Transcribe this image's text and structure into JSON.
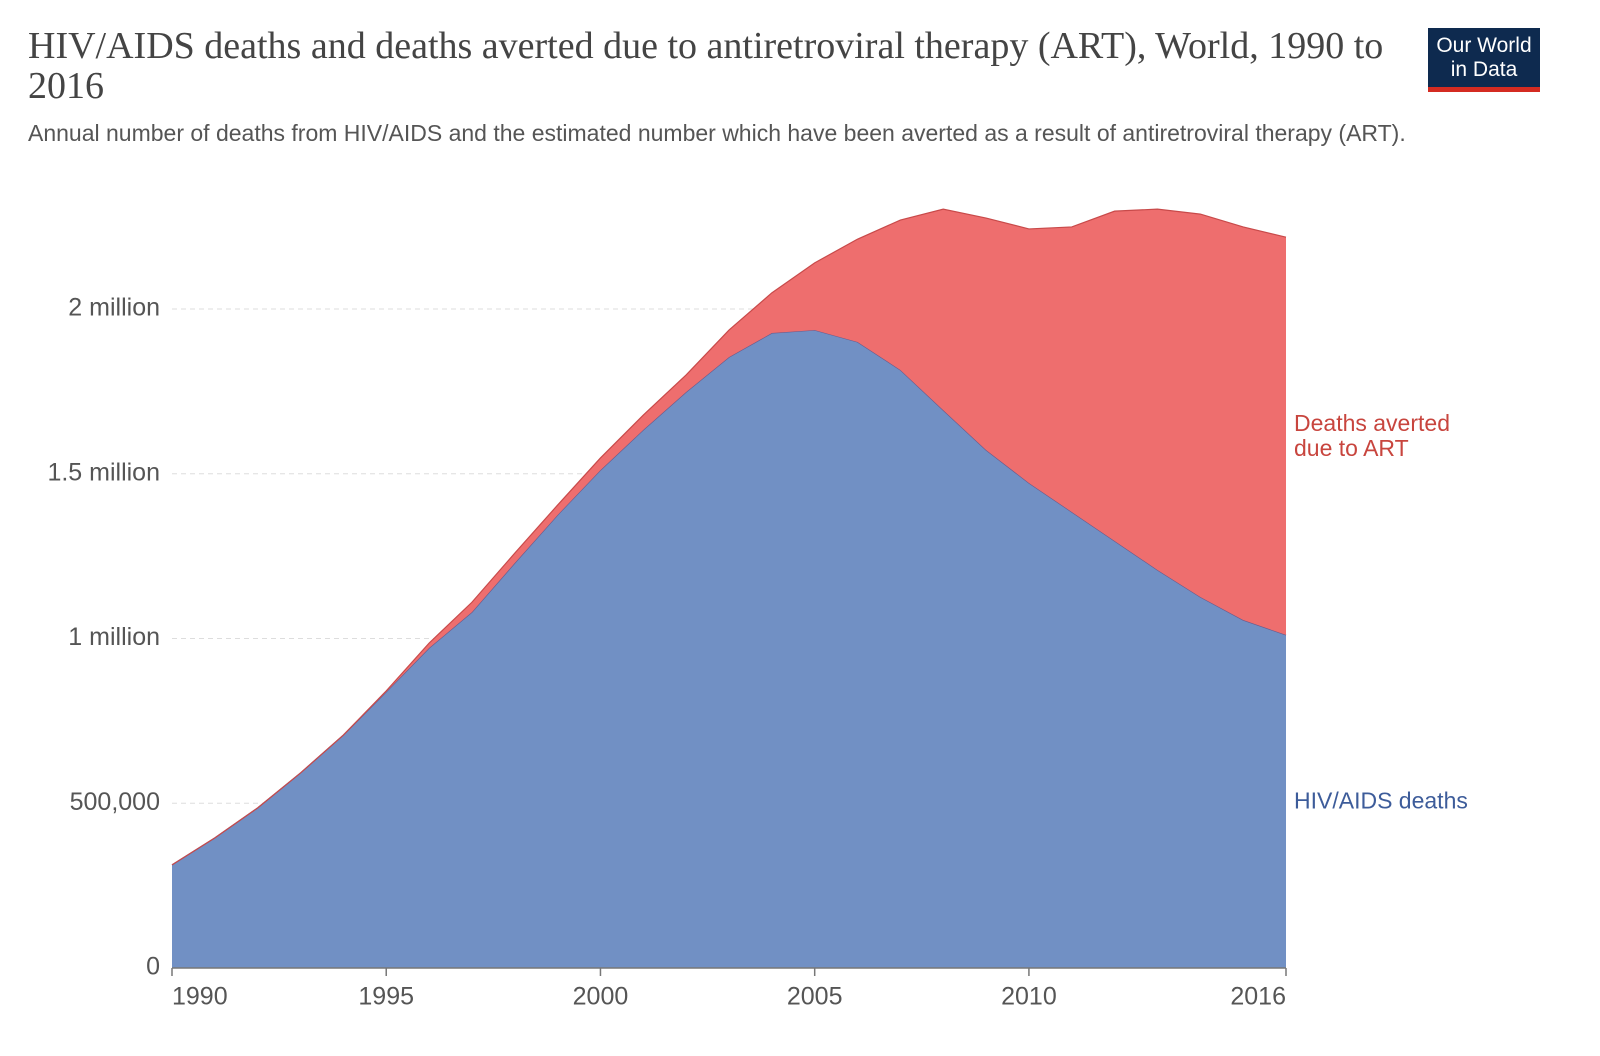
{
  "chart_data": {
    "type": "stacked_area",
    "title": "HIV/AIDS deaths and deaths averted due to antiretroviral therapy (ART), World, 1990 to 2016",
    "subtitle": "Annual number of deaths from HIV/AIDS and the estimated number which have been averted as a result of antiretroviral therapy (ART).",
    "logo": [
      "Our World",
      "in Data"
    ],
    "x": [
      1990,
      1991,
      1992,
      1993,
      1994,
      1995,
      1996,
      1997,
      1998,
      1999,
      2000,
      2001,
      2002,
      2003,
      2004,
      2005,
      2006,
      2007,
      2008,
      2009,
      2010,
      2011,
      2012,
      2013,
      2014,
      2015,
      2016
    ],
    "series": [
      {
        "name": "HIV/AIDS deaths",
        "color": "#7190c4",
        "label_color": "#3d5c9a",
        "values": [
          313000,
          395000,
          486000,
          592000,
          707000,
          838000,
          971000,
          1080000,
          1229000,
          1375000,
          1511000,
          1633000,
          1748000,
          1854000,
          1927000,
          1936000,
          1900000,
          1815000,
          1693000,
          1572000,
          1472000,
          1384000,
          1296000,
          1208000,
          1126000,
          1056000,
          1011000
        ]
      },
      {
        "name": "Deaths averted due to ART",
        "color": "#ee6e6e",
        "label_color": "#c8453e",
        "values": [
          0,
          0,
          0,
          0,
          0,
          3000,
          15000,
          30000,
          30000,
          30000,
          37000,
          45000,
          52000,
          82000,
          122000,
          204000,
          312000,
          455000,
          610000,
          704000,
          771000,
          865000,
          1001000,
          1095000,
          1162000,
          1193000,
          1207000
        ]
      }
    ],
    "xlim": [
      1990,
      2016
    ],
    "xticks": [
      1990,
      1995,
      2000,
      2005,
      2010,
      2016
    ],
    "ylim": [
      0,
      2320000
    ],
    "yticks": [
      0,
      {
        "value": 500000,
        "label": "500,000"
      },
      {
        "value": 1000000,
        "label": "1 million"
      },
      {
        "value": 1500000,
        "label": "1.5 million"
      },
      {
        "value": 2000000,
        "label": "2 million"
      }
    ],
    "grid": true
  }
}
